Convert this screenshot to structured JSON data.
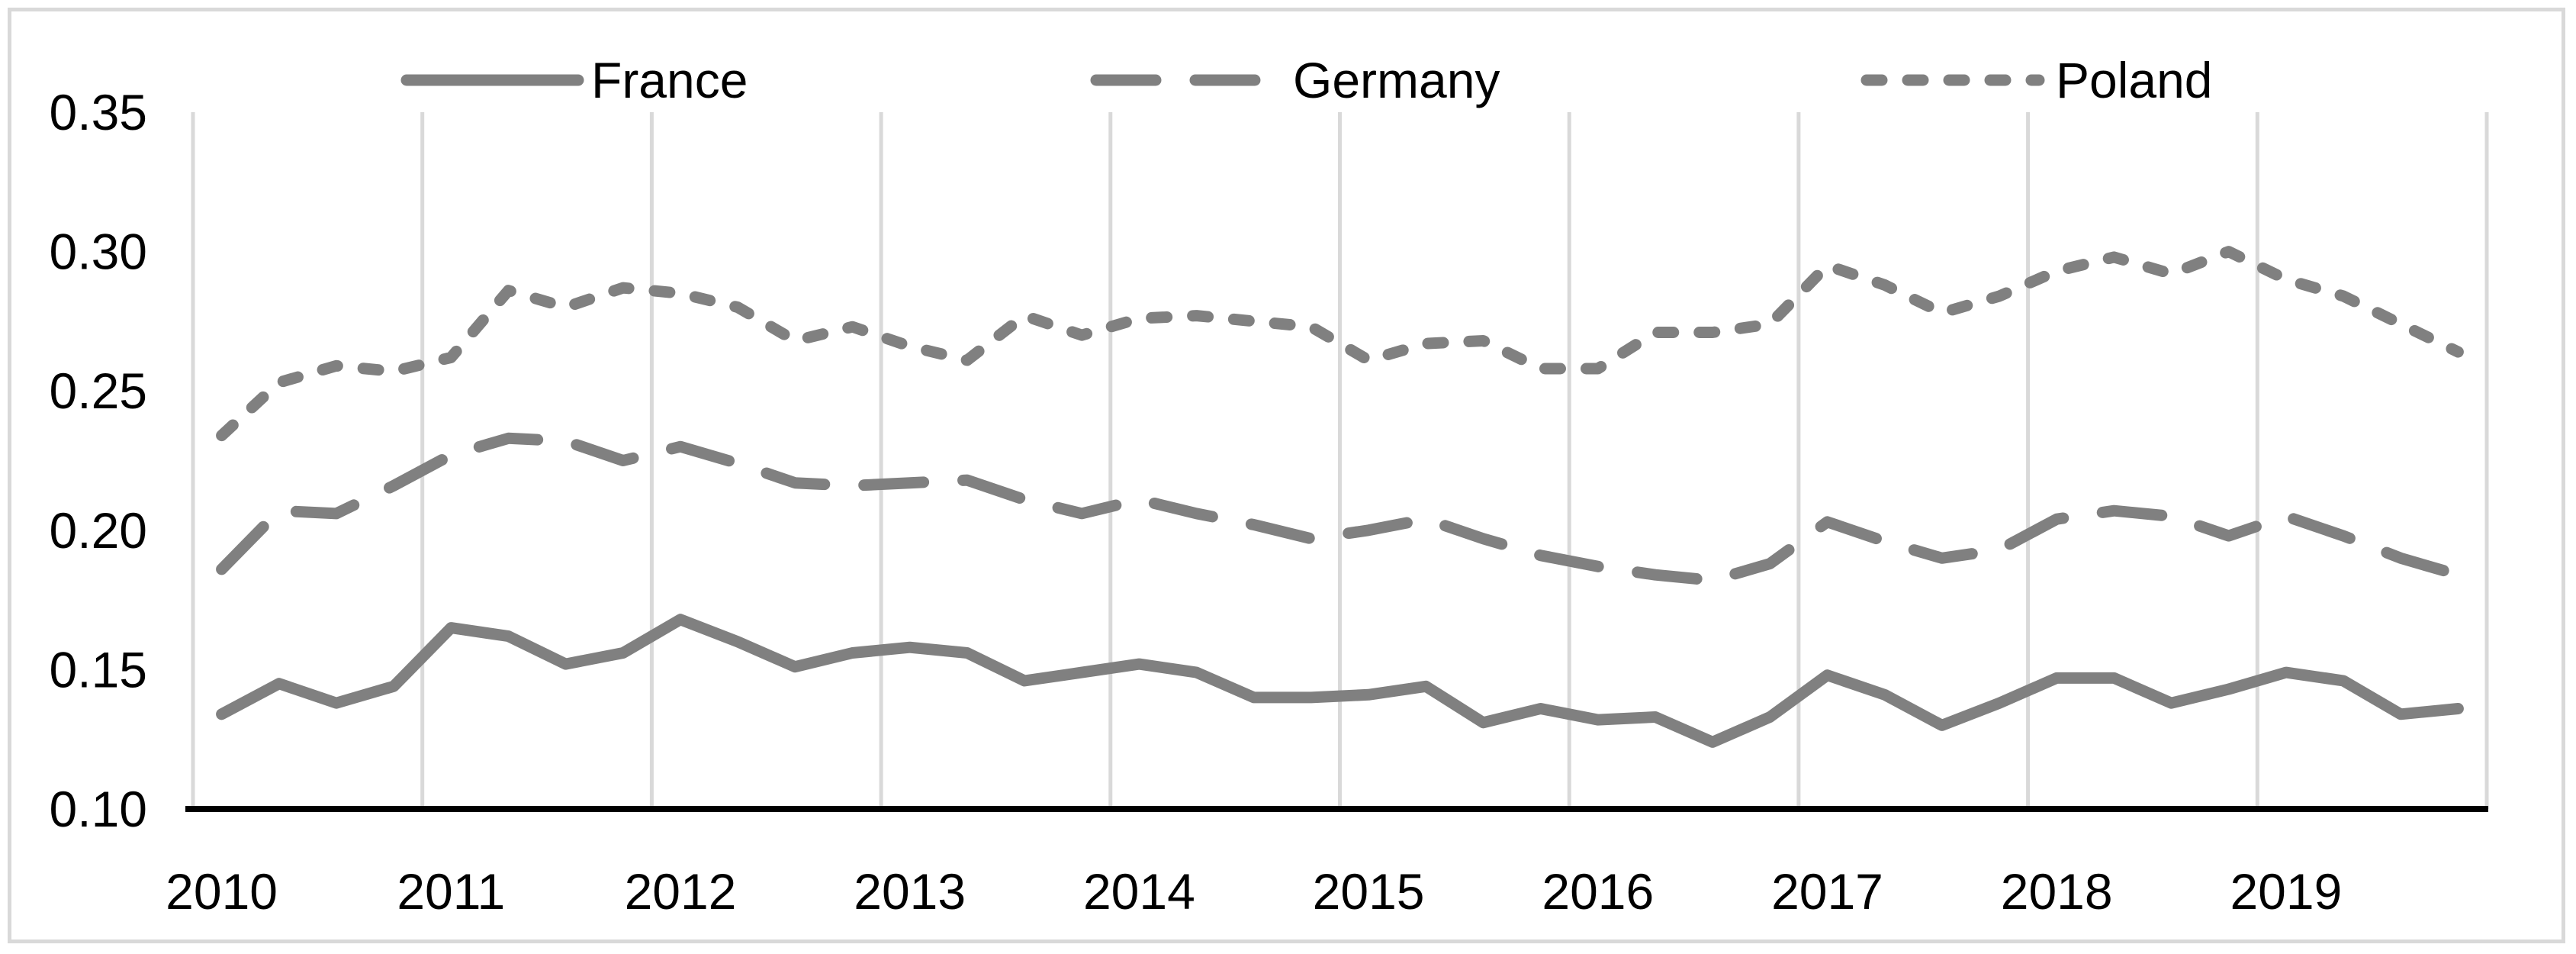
{
  "chart_data": {
    "type": "line",
    "title": "",
    "xlabel": "",
    "ylabel": "",
    "legend_position": "top",
    "grid": "vertical-year-gridlines-only",
    "background_color": "#ffffff",
    "frame_color": "#d9d9d9",
    "gridline_color": "#d9d9d9",
    "axis_line_color": "#000000",
    "line_color": "#808080",
    "x_axis": {
      "type": "category-quarterly",
      "years": [
        "2010",
        "2011",
        "2012",
        "2013",
        "2014",
        "2015",
        "2016",
        "2017",
        "2018",
        "2019"
      ],
      "quarters_per_year": 4,
      "total_points": 40
    },
    "y_axis": {
      "min": 0.1,
      "max": 0.35,
      "tick_step": 0.05,
      "tick_labels": [
        "0.35",
        "0.30",
        "0.25",
        "0.20",
        "0.15",
        "0.10"
      ]
    },
    "series": [
      {
        "name": "France",
        "style": "solid",
        "values": [
          0.134,
          0.145,
          0.138,
          0.144,
          0.165,
          0.162,
          0.152,
          0.156,
          0.168,
          0.16,
          0.151,
          0.156,
          0.158,
          0.156,
          0.146,
          0.149,
          0.152,
          0.149,
          0.14,
          0.14,
          0.141,
          0.144,
          0.131,
          0.136,
          0.132,
          0.133,
          0.124,
          0.133,
          0.148,
          0.141,
          0.13,
          0.138,
          0.147,
          0.147,
          0.138,
          0.143,
          0.149,
          0.146,
          0.134,
          0.136
        ]
      },
      {
        "name": "Germany",
        "style": "long-dash",
        "values": [
          0.186,
          0.207,
          0.206,
          0.216,
          0.227,
          0.233,
          0.232,
          0.225,
          0.23,
          0.224,
          0.217,
          0.216,
          0.217,
          0.218,
          0.211,
          0.206,
          0.211,
          0.206,
          0.202,
          0.197,
          0.2,
          0.204,
          0.197,
          0.191,
          0.187,
          0.184,
          0.182,
          0.188,
          0.203,
          0.196,
          0.19,
          0.193,
          0.204,
          0.207,
          0.205,
          0.198,
          0.205,
          0.198,
          0.19,
          0.184
        ]
      },
      {
        "name": "Poland",
        "style": "short-dash",
        "values": [
          0.234,
          0.253,
          0.259,
          0.257,
          0.262,
          0.286,
          0.28,
          0.287,
          0.285,
          0.28,
          0.268,
          0.273,
          0.266,
          0.261,
          0.277,
          0.27,
          0.276,
          0.277,
          0.275,
          0.273,
          0.261,
          0.267,
          0.268,
          0.258,
          0.258,
          0.271,
          0.271,
          0.274,
          0.295,
          0.288,
          0.278,
          0.284,
          0.293,
          0.298,
          0.292,
          0.3,
          0.29,
          0.284,
          0.274,
          0.264
        ]
      }
    ]
  }
}
